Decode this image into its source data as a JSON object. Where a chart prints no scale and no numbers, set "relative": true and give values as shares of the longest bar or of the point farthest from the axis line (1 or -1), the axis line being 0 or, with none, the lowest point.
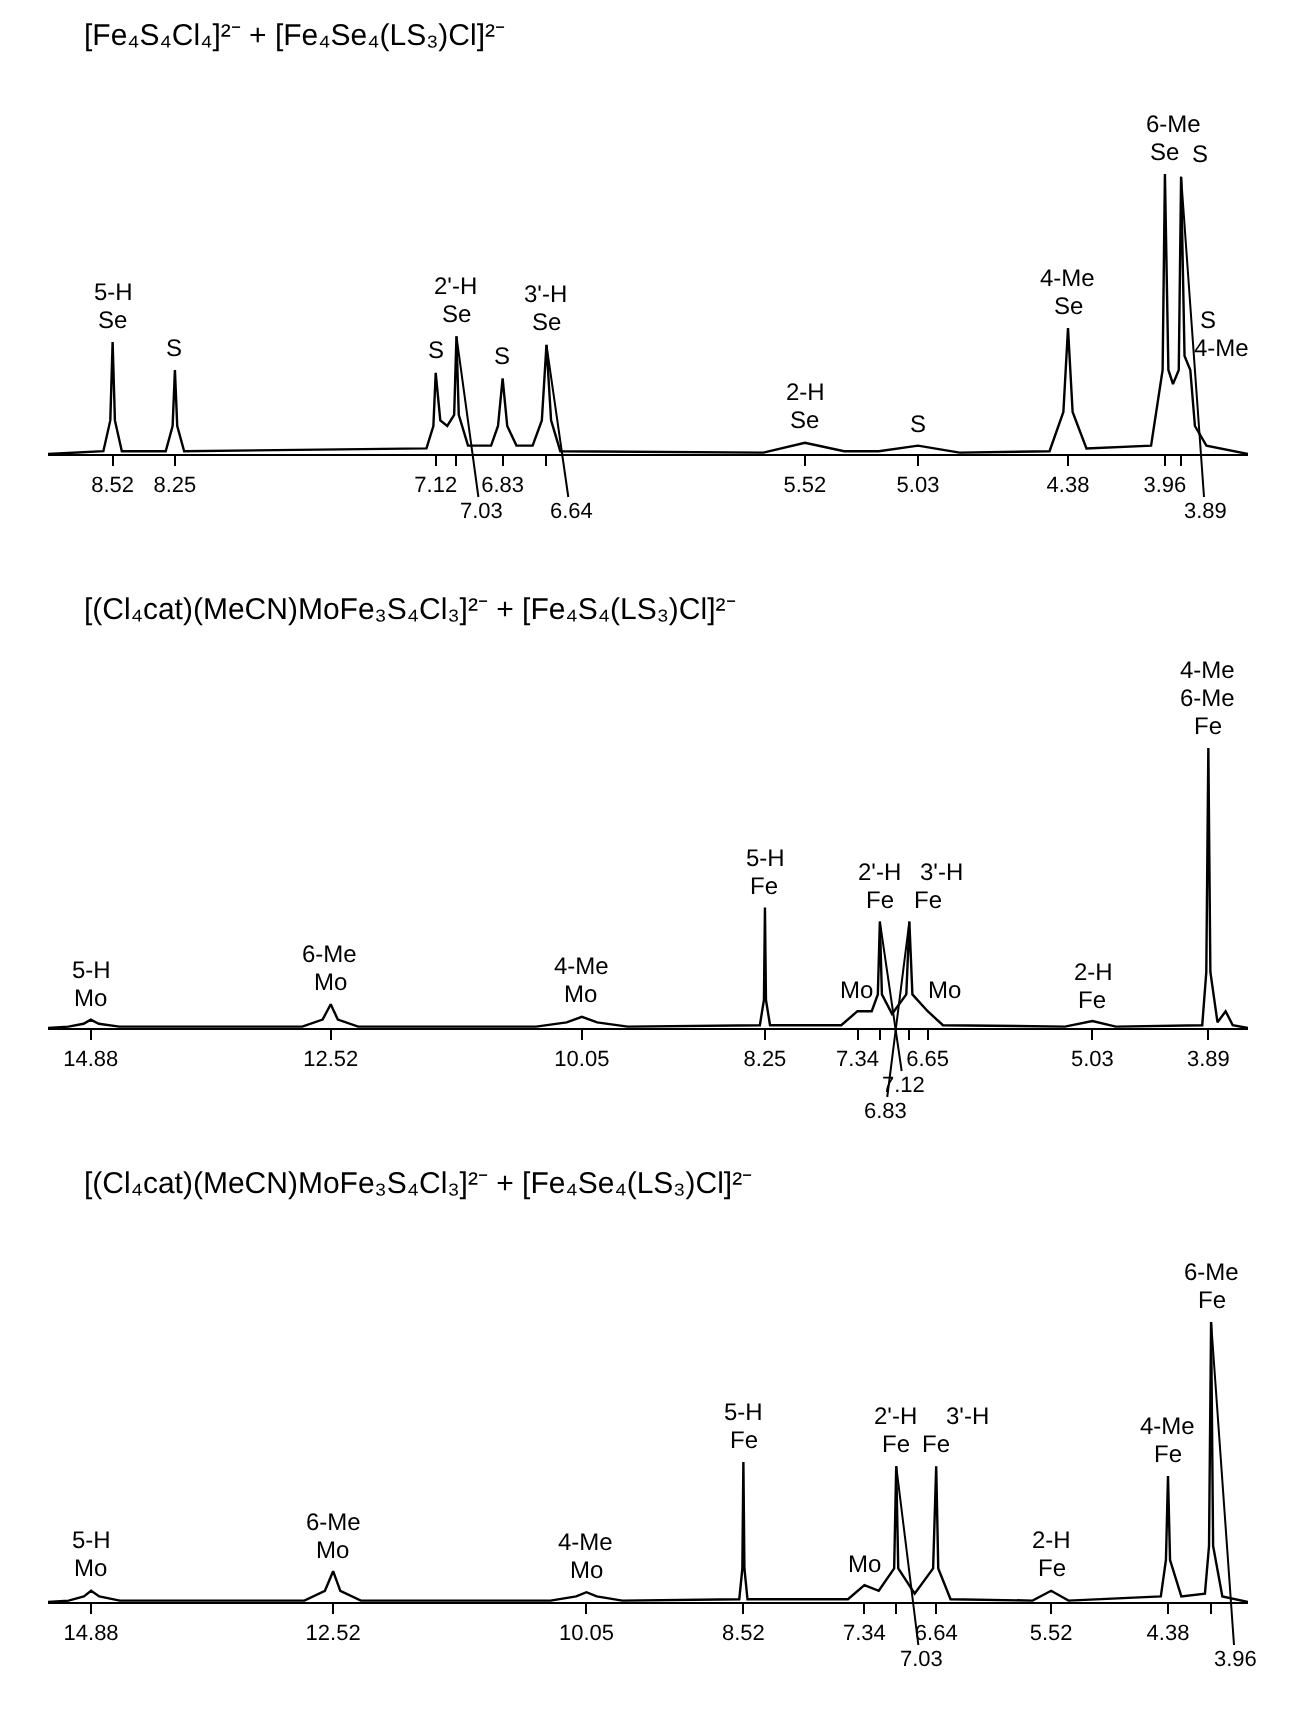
{
  "chart_data": [
    {
      "type": "line",
      "title": "[Fe₄S₄Cl₄]²⁻ + [Fe₄Se₄(LS₃)Cl]²⁻",
      "relative": true,
      "tick_labels": "x",
      "color": "#000000",
      "xlim": [
        8.8,
        3.6
      ],
      "xticks": [
        8.52,
        8.25,
        7.12,
        {
          "value": 7.03,
          "label": null
        },
        6.83,
        {
          "value": 6.64,
          "label": null
        },
        5.52,
        5.03,
        4.38,
        3.96,
        {
          "value": 3.89,
          "label": null
        }
      ],
      "x": [
        8.8,
        8.56,
        8.53,
        8.52,
        8.51,
        8.48,
        8.29,
        8.26,
        8.25,
        8.24,
        8.21,
        7.16,
        7.13,
        7.12,
        7.1,
        7.07,
        7.04,
        7.03,
        7.02,
        6.98,
        6.88,
        6.85,
        6.83,
        6.81,
        6.77,
        6.7,
        6.66,
        6.64,
        6.62,
        6.58,
        5.7,
        5.52,
        5.35,
        5.2,
        5.03,
        4.85,
        4.46,
        4.4,
        4.38,
        4.36,
        4.3,
        4.02,
        3.97,
        3.96,
        3.945,
        3.925,
        3.9,
        3.89,
        3.875,
        3.85,
        3.83,
        3.78,
        3.6
      ],
      "values": [
        0,
        0.01,
        0.12,
        0.4,
        0.12,
        0.01,
        0.01,
        0.1,
        0.3,
        0.1,
        0.01,
        0.02,
        0.1,
        0.29,
        0.12,
        0.1,
        0.14,
        0.42,
        0.14,
        0.03,
        0.03,
        0.1,
        0.27,
        0.1,
        0.03,
        0.03,
        0.12,
        0.39,
        0.12,
        0.01,
        0.005,
        0.04,
        0.01,
        0.01,
        0.03,
        0.005,
        0.01,
        0.15,
        0.45,
        0.15,
        0.02,
        0.03,
        0.3,
        1,
        0.3,
        0.25,
        0.3,
        0.99,
        0.35,
        0.3,
        0.1,
        0.03,
        0
      ],
      "annotations": [
        {
          "text": "7.03",
          "x": 7.03,
          "y": 0.42
        },
        {
          "text": "6.64",
          "x": 6.64,
          "y": 0.39
        },
        {
          "text": "3.89",
          "x": 3.89,
          "y": 0.99
        },
        {
          "text": "Se",
          "x": 8.52,
          "y": 0.4
        },
        {
          "text": "S",
          "x": 8.25,
          "y": 0.3
        },
        {
          "text": "S",
          "x": 7.12,
          "y": 0.29
        },
        {
          "text": "Se",
          "x": 7.03,
          "y": 0.42
        },
        {
          "text": "S",
          "x": 6.83,
          "y": 0.27
        },
        {
          "text": "Se",
          "x": 6.64,
          "y": 0.39
        },
        {
          "text": "Se",
          "x": 5.52,
          "y": 0.04
        },
        {
          "text": "S",
          "x": 5.03,
          "y": 0.03
        },
        {
          "text": "Se",
          "x": 4.38,
          "y": 0.45
        },
        {
          "text": "Se",
          "x": 3.96,
          "y": 1
        },
        {
          "text": "S",
          "x": 3.89,
          "y": 0.99
        },
        {
          "text": "4-Me",
          "x": 3.85,
          "y": 0.3
        },
        {
          "text": "S",
          "x": 3.85,
          "y": 0.3
        },
        {
          "text": "5-H",
          "x": 8.52,
          "y": 0.4
        },
        {
          "text": "2'-H",
          "x": 7.03,
          "y": 0.42
        },
        {
          "text": "3'-H",
          "x": 6.64,
          "y": 0.39
        },
        {
          "text": "2-H",
          "x": 5.52,
          "y": 0.04
        },
        {
          "text": "4-Me",
          "x": 4.38,
          "y": 0.45
        },
        {
          "text": "6-Me",
          "x": 3.925,
          "y": 1
        }
      ]
    },
    {
      "type": "line",
      "title": "[(Cl₄cat)(MeCN)MoFe₃S₄Cl₃]²⁻ + [Fe₄S₄(LS₃)Cl]²⁻",
      "relative": true,
      "tick_labels": "x",
      "color": "#000000",
      "xlim": [
        15.3,
        3.5
      ],
      "xticks": [
        14.88,
        12.52,
        10.05,
        8.25,
        7.34,
        {
          "value": 7.12,
          "label": null
        },
        {
          "value": 6.83,
          "label": null
        },
        6.65,
        5.03,
        3.89
      ],
      "x": [
        15.3,
        15.1,
        14.95,
        14.88,
        14.8,
        14.6,
        12.8,
        12.6,
        12.52,
        12.45,
        12.25,
        10.5,
        10.2,
        10.05,
        9.9,
        9.6,
        8.3,
        8.26,
        8.25,
        8.24,
        8.2,
        7.5,
        7.34,
        7.2,
        7.14,
        7.12,
        7.1,
        7,
        6.86,
        6.83,
        6.8,
        6.65,
        6.5,
        5.3,
        5.03,
        4.8,
        3.95,
        3.91,
        3.89,
        3.87,
        3.8,
        3.72,
        3.65,
        3.5
      ],
      "values": [
        0,
        0.005,
        0.015,
        0.03,
        0.015,
        0.005,
        0.005,
        0.03,
        0.085,
        0.03,
        0.005,
        0.005,
        0.02,
        0.04,
        0.02,
        0.005,
        0.01,
        0.1,
        0.43,
        0.1,
        0.01,
        0.01,
        0.06,
        0.06,
        0.12,
        0.38,
        0.12,
        0.05,
        0.12,
        0.38,
        0.12,
        0.06,
        0.01,
        0.005,
        0.025,
        0.005,
        0.01,
        0.2,
        1,
        0.2,
        0.02,
        0.06,
        0.01,
        0
      ],
      "annotations": [
        {
          "text": "7.12",
          "x": 7.12,
          "y": 0.38
        },
        {
          "text": "6.83",
          "x": 6.83,
          "y": 0.38
        },
        {
          "text": "Mo",
          "x": 14.88,
          "y": 0.03
        },
        {
          "text": "Mo",
          "x": 12.52,
          "y": 0.085
        },
        {
          "text": "Mo",
          "x": 10.05,
          "y": 0.04
        },
        {
          "text": "Fe",
          "x": 8.25,
          "y": 0.43
        },
        {
          "text": "Mo",
          "x": 7.34,
          "y": 0.06
        },
        {
          "text": "Fe",
          "x": 7.12,
          "y": 0.38
        },
        {
          "text": "Fe",
          "x": 6.83,
          "y": 0.38
        },
        {
          "text": "Mo",
          "x": 6.65,
          "y": 0.06
        },
        {
          "text": "Fe",
          "x": 5.03,
          "y": 0.025
        },
        {
          "text": "Fe",
          "x": 3.89,
          "y": 1
        },
        {
          "text": "5-H",
          "x": 14.88,
          "y": 0.03
        },
        {
          "text": "6-Me",
          "x": 12.52,
          "y": 0.085
        },
        {
          "text": "4-Me",
          "x": 10.05,
          "y": 0.04
        },
        {
          "text": "5-H",
          "x": 8.25,
          "y": 0.43
        },
        {
          "text": "2'-H",
          "x": 7.12,
          "y": 0.38
        },
        {
          "text": "3'-H",
          "x": 6.83,
          "y": 0.38
        },
        {
          "text": "2-H",
          "x": 5.03,
          "y": 0.025
        },
        {
          "text": "6-Me",
          "x": 3.89,
          "y": 1
        },
        {
          "text": "4-Me",
          "x": 3.89,
          "y": 1
        }
      ]
    },
    {
      "type": "line",
      "title": "[(Cl₄cat)(MeCN)MoFe₃S₄Cl₃]²⁻ + [Fe₄Se₄(LS₃)Cl]²⁻",
      "relative": true,
      "tick_labels": "x",
      "color": "#000000",
      "xlim": [
        15.3,
        3.6
      ],
      "xticks": [
        14.88,
        12.52,
        10.05,
        8.52,
        7.34,
        {
          "value": 7.03,
          "label": null
        },
        6.64,
        5.52,
        4.38,
        {
          "value": 3.96,
          "label": null
        }
      ],
      "x": [
        15.3,
        15.1,
        14.95,
        14.88,
        14.8,
        14.6,
        12.8,
        12.6,
        12.52,
        12.45,
        12.25,
        10.4,
        10.15,
        10.05,
        9.95,
        9.7,
        8.56,
        8.53,
        8.52,
        8.51,
        8.48,
        7.5,
        7.34,
        7.2,
        7.05,
        7.03,
        7.01,
        6.85,
        6.67,
        6.64,
        6.62,
        6.5,
        5.7,
        5.52,
        5.35,
        4.45,
        4.4,
        4.38,
        4.36,
        4.25,
        4.02,
        3.98,
        3.96,
        3.94,
        3.85,
        3.6
      ],
      "values": [
        0,
        0.005,
        0.02,
        0.04,
        0.02,
        0.005,
        0.005,
        0.04,
        0.11,
        0.04,
        0.005,
        0.005,
        0.02,
        0.035,
        0.02,
        0.005,
        0.01,
        0.12,
        0.5,
        0.12,
        0.01,
        0.01,
        0.06,
        0.04,
        0.12,
        0.485,
        0.12,
        0.03,
        0.12,
        0.485,
        0.12,
        0.01,
        0.005,
        0.04,
        0.005,
        0.02,
        0.15,
        0.45,
        0.15,
        0.02,
        0.03,
        0.2,
        1,
        0.2,
        0.02,
        0
      ],
      "annotations": [
        {
          "text": "7.03",
          "x": 7.03,
          "y": 0.485
        },
        {
          "text": "3.96",
          "x": 3.96,
          "y": 1
        },
        {
          "text": "Mo",
          "x": 14.88,
          "y": 0.04
        },
        {
          "text": "Mo",
          "x": 12.52,
          "y": 0.11
        },
        {
          "text": "Mo",
          "x": 10.05,
          "y": 0.035
        },
        {
          "text": "Fe",
          "x": 8.52,
          "y": 0.5
        },
        {
          "text": "Mo",
          "x": 7.34,
          "y": 0.06
        },
        {
          "text": "Fe",
          "x": 7.03,
          "y": 0.485
        },
        {
          "text": "Fe",
          "x": 6.64,
          "y": 0.485
        },
        {
          "text": "Fe",
          "x": 5.52,
          "y": 0.04
        },
        {
          "text": "Fe",
          "x": 4.38,
          "y": 0.45
        },
        {
          "text": "Fe",
          "x": 3.96,
          "y": 1
        },
        {
          "text": "5-H",
          "x": 14.88,
          "y": 0.04
        },
        {
          "text": "6-Me",
          "x": 12.52,
          "y": 0.11
        },
        {
          "text": "4-Me",
          "x": 10.05,
          "y": 0.035
        },
        {
          "text": "5-H",
          "x": 8.52,
          "y": 0.5
        },
        {
          "text": "2'-H",
          "x": 7.03,
          "y": 0.485
        },
        {
          "text": "3'-H",
          "x": 6.64,
          "y": 0.485
        },
        {
          "text": "2-H",
          "x": 5.52,
          "y": 0.04
        },
        {
          "text": "4-Me",
          "x": 4.38,
          "y": 0.45
        },
        {
          "text": "6-Me",
          "x": 3.96,
          "y": 1
        }
      ]
    }
  ]
}
